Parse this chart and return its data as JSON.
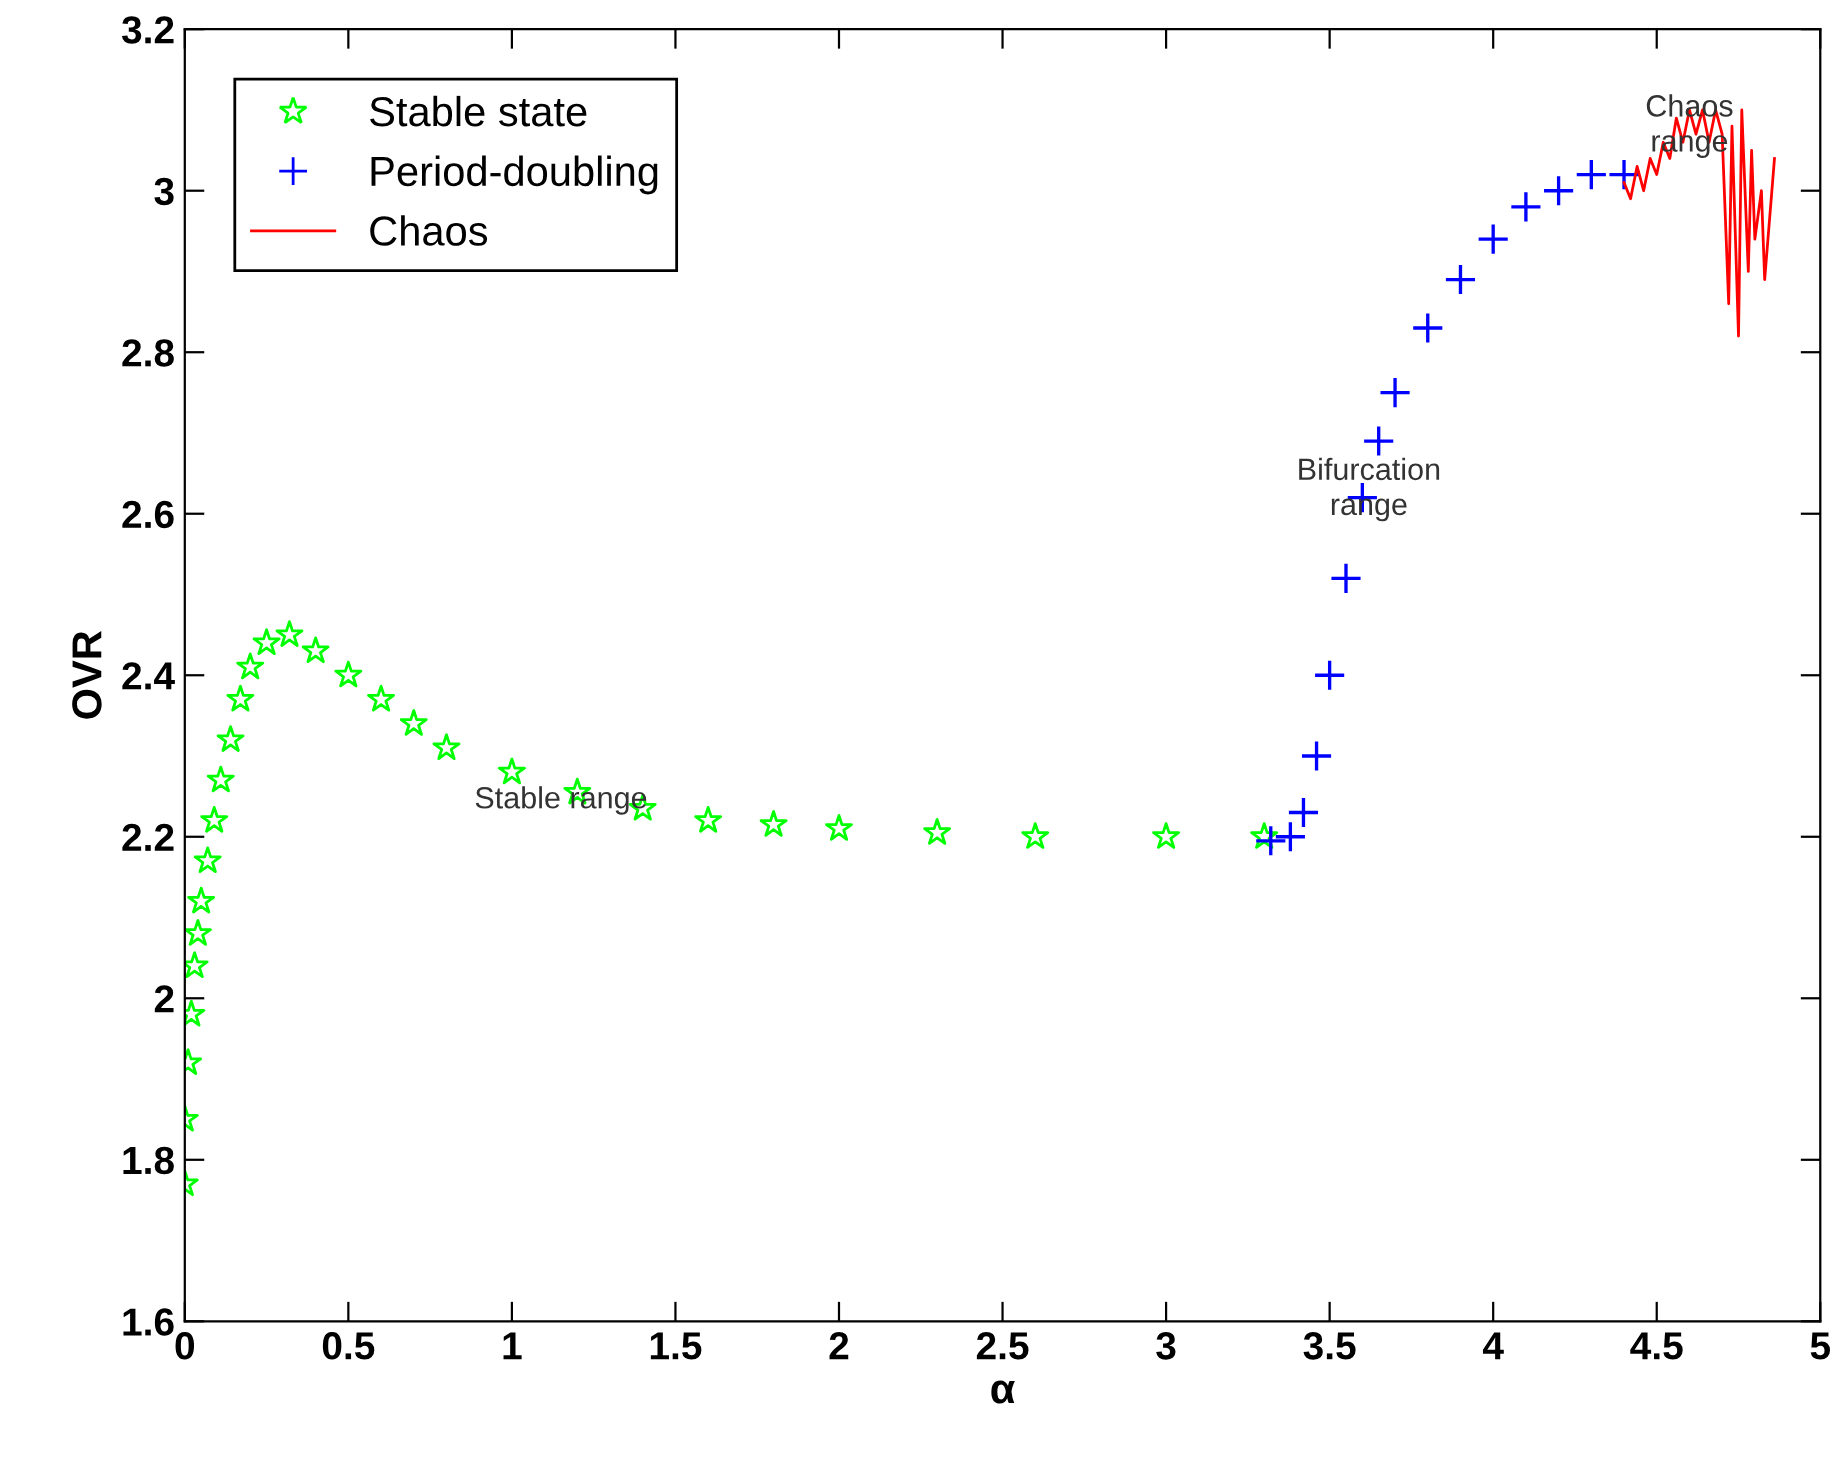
{
  "chart_data": {
    "type": "scatter",
    "xlabel": "α",
    "ylabel": "OVR",
    "xlim": [
      0,
      5
    ],
    "ylim": [
      1.6,
      3.2
    ],
    "xticks": [
      0,
      0.5,
      1,
      1.5,
      2,
      2.5,
      3,
      3.5,
      4,
      4.5,
      5
    ],
    "yticks": [
      1.6,
      1.8,
      2,
      2.2,
      2.4,
      2.6,
      2.8,
      3,
      3.2
    ],
    "grid": false,
    "legend": "top left",
    "series": [
      {
        "name": "Stable state",
        "marker": "star",
        "color": "#00ff00",
        "x": [
          0.0,
          0.0,
          0.01,
          0.02,
          0.03,
          0.04,
          0.05,
          0.07,
          0.09,
          0.11,
          0.14,
          0.17,
          0.2,
          0.25,
          0.32,
          0.4,
          0.5,
          0.6,
          0.7,
          0.8,
          1.0,
          1.2,
          1.4,
          1.6,
          1.8,
          2.0,
          2.3,
          2.6,
          3.0,
          3.3
        ],
        "values": [
          1.77,
          1.85,
          1.92,
          1.98,
          2.04,
          2.08,
          2.12,
          2.17,
          2.22,
          2.27,
          2.32,
          2.37,
          2.41,
          2.44,
          2.45,
          2.43,
          2.4,
          2.37,
          2.34,
          2.31,
          2.28,
          2.255,
          2.235,
          2.22,
          2.215,
          2.21,
          2.205,
          2.2,
          2.2,
          2.2
        ]
      },
      {
        "name": "Period-doubling",
        "marker": "cross",
        "color": "#0000ff",
        "x": [
          3.32,
          3.38,
          3.42,
          3.46,
          3.5,
          3.55,
          3.6,
          3.65,
          3.7,
          3.8,
          3.9,
          4.0,
          4.1,
          4.2,
          4.3,
          4.4
        ],
        "values": [
          2.195,
          2.2,
          2.23,
          2.3,
          2.4,
          2.52,
          2.62,
          2.69,
          2.75,
          2.83,
          2.89,
          2.94,
          2.98,
          3.0,
          3.02,
          3.02
        ]
      },
      {
        "name": "Chaos",
        "type": "line",
        "marker": "none",
        "line_style": "solid",
        "color": "#ff0000",
        "x": [
          4.4,
          4.42,
          4.44,
          4.46,
          4.48,
          4.5,
          4.52,
          4.54,
          4.56,
          4.58,
          4.6,
          4.62,
          4.64,
          4.66,
          4.68,
          4.7,
          4.72,
          4.73,
          4.75,
          4.76,
          4.78,
          4.79,
          4.8,
          4.82,
          4.83,
          4.86
        ],
        "values": [
          3.01,
          2.99,
          3.03,
          3.0,
          3.04,
          3.02,
          3.06,
          3.04,
          3.09,
          3.06,
          3.1,
          3.07,
          3.1,
          3.06,
          3.1,
          3.07,
          2.86,
          3.08,
          2.82,
          3.1,
          2.9,
          3.05,
          2.94,
          3.0,
          2.89,
          3.04
        ]
      }
    ],
    "annotations": [
      {
        "text": "Stable range",
        "x": 1.15,
        "y": 2.245
      },
      {
        "text": "Bifurcation\nrange",
        "x": 3.62,
        "y": 2.63
      },
      {
        "text": "Chaos\nrange",
        "x": 4.6,
        "y": 3.08
      }
    ]
  }
}
